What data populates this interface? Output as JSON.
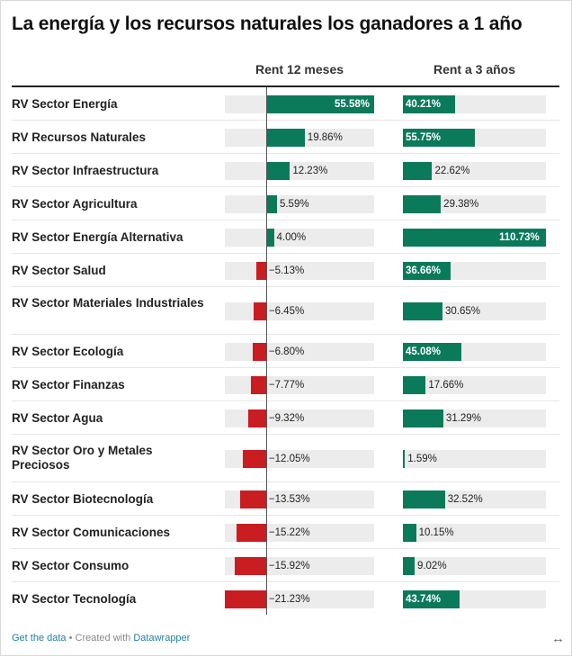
{
  "title": "La energía y los recursos naturales los ganadores a 1 año",
  "columns": {
    "col1": "Rent 12 meses",
    "col2": "Rent a 3 años"
  },
  "footer": {
    "get_data": "Get the data",
    "separator": "•",
    "created_with": "Created with",
    "tool": "Datawrapper"
  },
  "expand_icon": "↔",
  "colors": {
    "positive": "#0a7a5a",
    "negative": "#c91d22",
    "track": "#ececec"
  },
  "chart_data": {
    "type": "bar",
    "title": "La energía y los recursos naturales los ganadores a 1 año",
    "categories": [
      "RV Sector Energía",
      "RV Recursos Naturales",
      "RV Sector Infraestructura",
      "RV Sector Agricultura",
      "RV Sector Energía Alternativa",
      "RV Sector Salud",
      "RV Sector Materiales Industriales",
      "RV Sector Ecología",
      "RV Sector Finanzas",
      "RV Sector Agua",
      "RV Sector Oro y Metales Preciosos",
      "RV Sector Biotecnología",
      "RV Sector Comunicaciones",
      "RV Sector Consumo",
      "RV Sector Tecnología"
    ],
    "series": [
      {
        "name": "Rent 12 meses",
        "values": [
          55.58,
          19.86,
          12.23,
          5.59,
          4.0,
          -5.13,
          -6.45,
          -6.8,
          -7.77,
          -9.32,
          -12.05,
          -13.53,
          -15.22,
          -15.92,
          -21.23
        ],
        "labels": [
          "55.58%",
          "19.86%",
          "12.23%",
          "5.59%",
          "4.00%",
          "−5.13%",
          "−6.45%",
          "−6.80%",
          "−7.77%",
          "−9.32%",
          "−12.05%",
          "−13.53%",
          "−15.22%",
          "−15.92%",
          "−21.23%"
        ],
        "range": [
          -21.23,
          55.58
        ]
      },
      {
        "name": "Rent a 3 años",
        "values": [
          40.21,
          55.75,
          22.62,
          29.38,
          110.73,
          36.66,
          30.65,
          45.08,
          17.66,
          31.29,
          1.59,
          32.52,
          10.15,
          9.02,
          43.74
        ],
        "labels": [
          "40.21%",
          "55.75%",
          "22.62%",
          "29.38%",
          "110.73%",
          "36.66%",
          "30.65%",
          "45.08%",
          "17.66%",
          "31.29%",
          "1.59%",
          "32.52%",
          "10.15%",
          "9.02%",
          "43.74%"
        ],
        "range": [
          0,
          110.73
        ]
      }
    ]
  }
}
